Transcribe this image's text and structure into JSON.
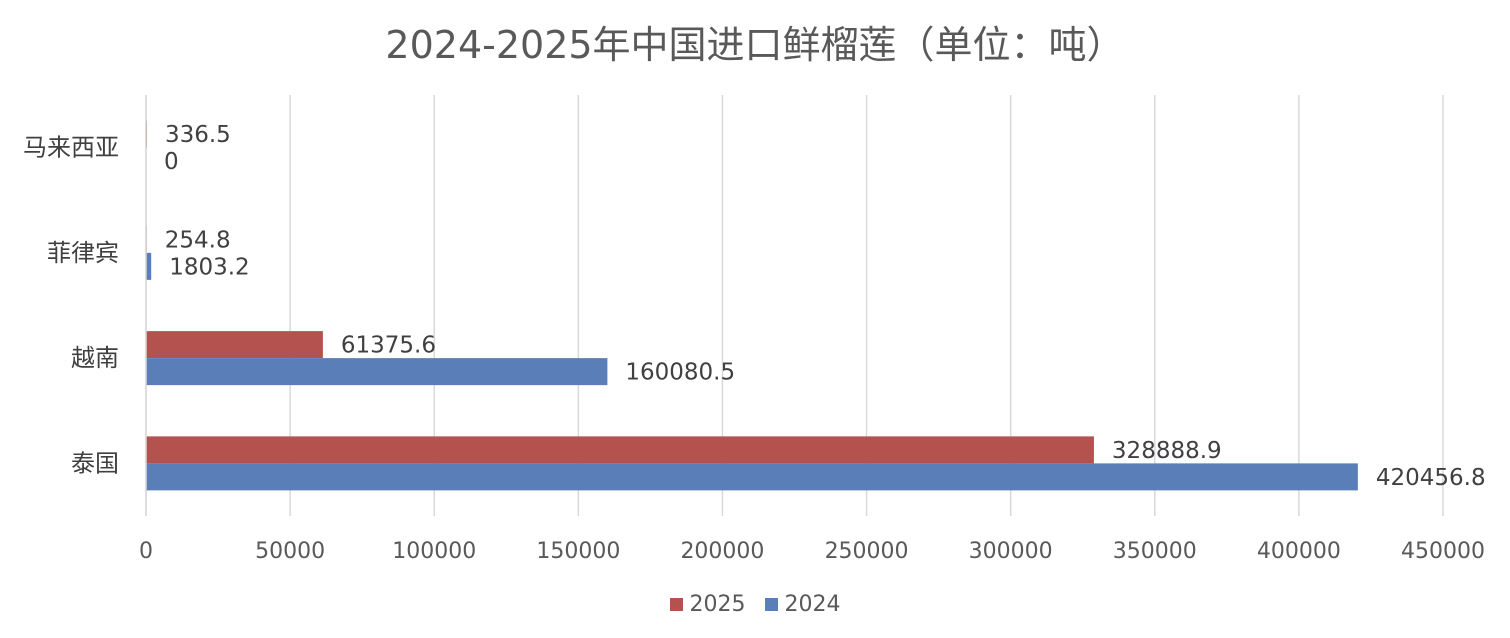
{
  "chart_data": {
    "type": "bar",
    "orientation": "horizontal",
    "title": "2024-2025年中国进口鲜榴莲（单位：吨）",
    "categories": [
      "泰国",
      "越南",
      "菲律宾",
      "马来西亚"
    ],
    "series": [
      {
        "name": "2025",
        "color": "#b3524f",
        "values": [
          328888.9,
          61375.6,
          254.8,
          336.5
        ],
        "labels": [
          "328888.9",
          "61375.6",
          "254.8",
          "336.5"
        ]
      },
      {
        "name": "2024",
        "color": "#5a7fb8",
        "values": [
          420456.8,
          160080.5,
          1803.2,
          0
        ],
        "labels": [
          "420456.8",
          "160080.5",
          "1803.2",
          "0"
        ]
      }
    ],
    "xlim": [
      0,
      450000
    ],
    "xticks": [
      "0",
      "50000",
      "100000",
      "150000",
      "200000",
      "250000",
      "300000",
      "350000",
      "400000",
      "450000"
    ],
    "grid": true,
    "legend_position": "bottom"
  }
}
